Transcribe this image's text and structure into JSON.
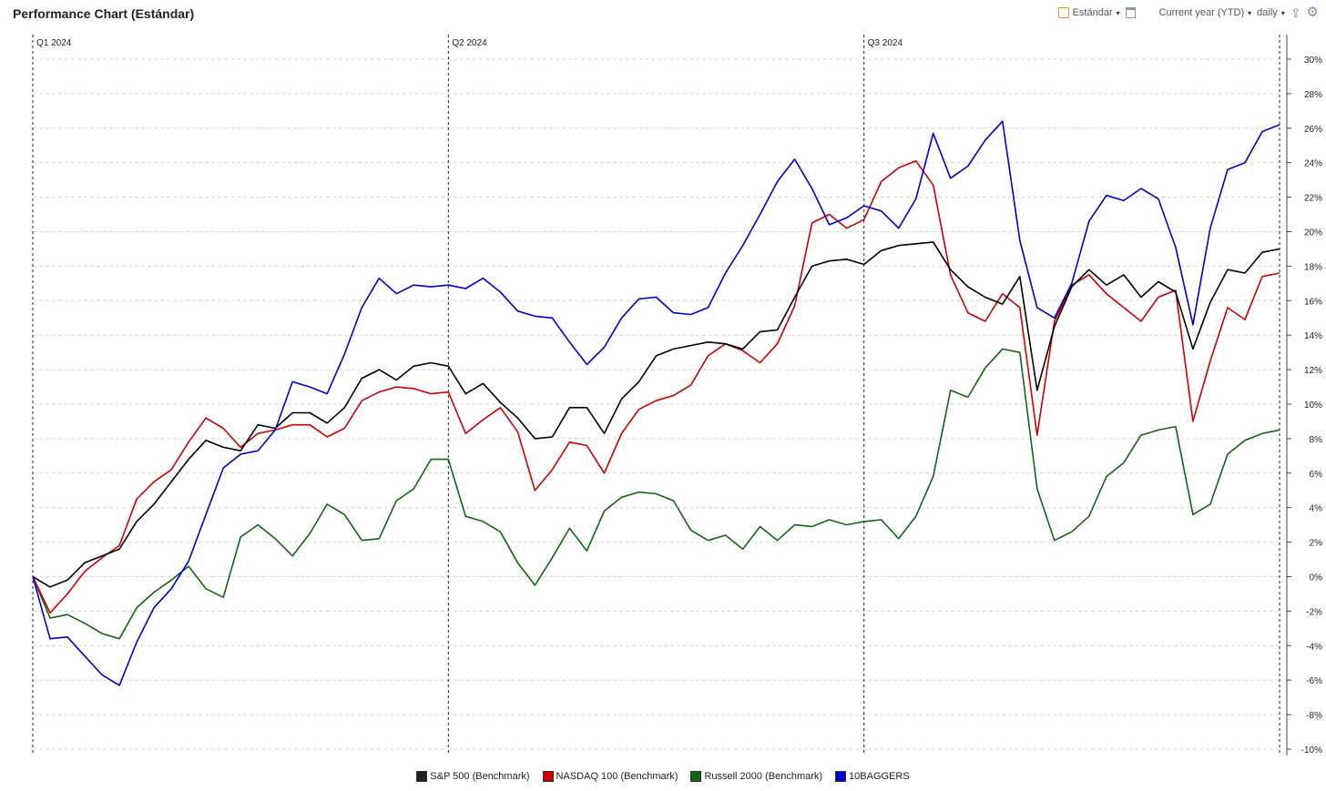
{
  "header": {
    "title": "Performance Chart (Estándar)",
    "layout_label": "Estándar",
    "range_label": "Current year (YTD)",
    "interval_label": "daily",
    "caret": "▾",
    "icons": [
      "layout-icon",
      "window-icon",
      "export-icon",
      "gear-icon"
    ]
  },
  "chart_data": {
    "type": "line",
    "ylim": [
      -10,
      30
    ],
    "yticks": [
      -10,
      -8,
      -6,
      -4,
      -2,
      0,
      2,
      4,
      6,
      8,
      10,
      12,
      14,
      16,
      18,
      20,
      22,
      24,
      26,
      28,
      30
    ],
    "ytick_labels": [
      "-10%",
      "-8%",
      "-6%",
      "-4%",
      "-2%",
      "0%",
      "2%",
      "4%",
      "6%",
      "8%",
      "10%",
      "12%",
      "14%",
      "16%",
      "18%",
      "20%",
      "22%",
      "24%",
      "26%",
      "28%",
      "30%"
    ],
    "y_axis_side": "right",
    "grid": true,
    "x_index_range": [
      0,
      72
    ],
    "quarters": [
      {
        "label": "Q1 2024",
        "index": 0
      },
      {
        "label": "Q2 2024",
        "index": 24
      },
      {
        "label": "Q3 2024",
        "index": 48
      },
      {
        "label": "",
        "index": 72
      }
    ],
    "series": [
      {
        "name": "S&P 500  (Benchmark)",
        "color": "#000000",
        "values": [
          0,
          -0.6,
          -0.2,
          0.8,
          1.2,
          1.6,
          3.2,
          4.2,
          5.5,
          6.8,
          7.9,
          7.5,
          7.3,
          8.8,
          8.6,
          9.5,
          9.5,
          8.9,
          9.8,
          11.5,
          12.0,
          11.4,
          12.2,
          12.4,
          12.2,
          10.6,
          11.2,
          10.1,
          9.2,
          8.0,
          8.1,
          9.8,
          9.8,
          8.3,
          10.3,
          11.3,
          12.8,
          13.2,
          13.4,
          13.6,
          13.5,
          13.2,
          14.2,
          14.3,
          16.2,
          18.0,
          18.3,
          18.4,
          18.1,
          18.9,
          19.2,
          19.3,
          19.4,
          17.8,
          16.8,
          16.2,
          15.8,
          17.4,
          10.8,
          14.5,
          16.8,
          17.8,
          16.9,
          17.5,
          16.2,
          17.1,
          16.5,
          13.2,
          15.9,
          17.8,
          17.6,
          18.8,
          19.0
        ]
      },
      {
        "name": "NASDAQ 100 (Benchmark)",
        "color": "#cc0000",
        "values": [
          0,
          -2.1,
          -1.0,
          0.3,
          1.1,
          1.8,
          4.5,
          5.5,
          6.2,
          7.8,
          9.2,
          8.6,
          7.5,
          8.3,
          8.5,
          8.8,
          8.8,
          8.1,
          8.6,
          10.2,
          10.7,
          11.0,
          10.9,
          10.6,
          10.7,
          8.3,
          9.1,
          9.8,
          8.4,
          5.0,
          6.2,
          7.8,
          7.6,
          6.0,
          8.3,
          9.7,
          10.2,
          10.5,
          11.1,
          12.8,
          13.5,
          13.1,
          12.4,
          13.5,
          15.7,
          20.5,
          21.0,
          20.2,
          20.7,
          22.9,
          23.7,
          24.1,
          22.7,
          17.5,
          15.3,
          14.8,
          16.4,
          15.6,
          8.2,
          14.8,
          16.9,
          17.5,
          16.4,
          15.6,
          14.8,
          16.2,
          16.6,
          9.0,
          12.5,
          15.6,
          14.9,
          17.4,
          17.6
        ]
      },
      {
        "name": "Russell 2000 (Benchmark)",
        "color": "#116611",
        "values": [
          0,
          -2.4,
          -2.2,
          -2.7,
          -3.3,
          -3.6,
          -1.8,
          -0.9,
          -0.2,
          0.6,
          -0.7,
          -1.2,
          2.3,
          3.0,
          2.2,
          1.2,
          2.5,
          4.2,
          3.6,
          2.1,
          2.2,
          4.4,
          5.1,
          6.8,
          6.8,
          3.5,
          3.2,
          2.6,
          0.8,
          -0.5,
          1.1,
          2.8,
          1.5,
          3.8,
          4.6,
          4.9,
          4.8,
          4.4,
          2.7,
          2.1,
          2.4,
          1.6,
          2.9,
          2.1,
          3.0,
          2.9,
          3.3,
          3.0,
          3.2,
          3.3,
          2.2,
          3.5,
          5.8,
          10.8,
          10.4,
          12.1,
          13.2,
          13.0,
          5.1,
          2.1,
          2.6,
          3.5,
          5.8,
          6.6,
          8.2,
          8.5,
          8.7,
          3.6,
          4.2,
          7.1,
          7.9,
          8.3,
          8.5
        ]
      },
      {
        "name": "10BAGGERS",
        "color": "#0000cc",
        "values": [
          0,
          -3.6,
          -3.5,
          -4.6,
          -5.7,
          -6.3,
          -3.8,
          -1.8,
          -0.7,
          0.9,
          3.6,
          6.3,
          7.1,
          7.3,
          8.5,
          11.3,
          11.0,
          10.6,
          12.9,
          15.6,
          17.3,
          16.4,
          16.9,
          16.8,
          16.9,
          16.7,
          17.3,
          16.5,
          15.4,
          15.1,
          15.0,
          13.6,
          12.3,
          13.3,
          15.0,
          16.1,
          16.2,
          15.3,
          15.2,
          15.6,
          17.6,
          19.2,
          21.0,
          22.9,
          24.2,
          22.5,
          20.4,
          20.8,
          21.5,
          21.2,
          20.2,
          21.9,
          25.7,
          23.1,
          23.8,
          25.3,
          26.4,
          19.5,
          15.6,
          15.0,
          17.0,
          20.6,
          22.1,
          21.8,
          22.5,
          21.9,
          19.1,
          14.6,
          20.2,
          23.6,
          24.0,
          25.8,
          26.2
        ]
      }
    ]
  },
  "legend": [
    {
      "label": "S&P 500  (Benchmark)",
      "color": "#222222"
    },
    {
      "label": "NASDAQ 100 (Benchmark)",
      "color": "#cc0000"
    },
    {
      "label": "Russell 2000 (Benchmark)",
      "color": "#116611"
    },
    {
      "label": "10BAGGERS",
      "color": "#0000cc"
    }
  ]
}
